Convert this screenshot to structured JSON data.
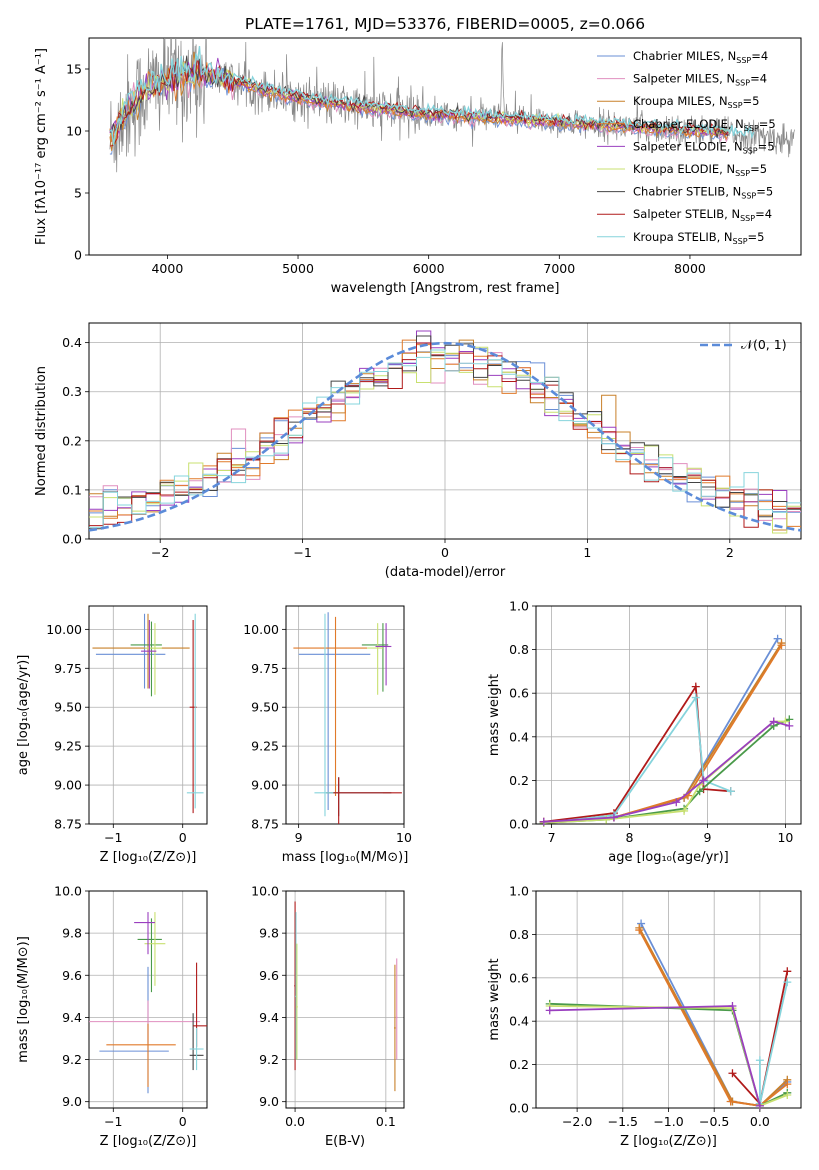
{
  "figure": {
    "title": "PLATE=1761, MJD=53376, FIBERID=0005, z=0.066"
  },
  "colors": {
    "chabrier_miles": "#6a8fd6",
    "salpeter_miles": "#e08fbf",
    "kroupa_miles": "#c8802a",
    "chabrier_elodie": "#e07a2a",
    "salpeter_elodie": "#9a3fbf",
    "kroupa_elodie": "#c8e070",
    "chabrier_stelib": "#444444",
    "salpeter_stelib": "#b01a1a",
    "kroupa_stelib": "#86d4dc",
    "green": "#4a9a4a",
    "data_grey": "#888888",
    "normal_curve": "#5b8bd9"
  },
  "chart_data": [
    {
      "id": "spectrum",
      "type": "line",
      "xlabel": "wavelength [Angstrom, rest frame]",
      "ylabel": "Flux [fλ10⁻¹⁷ erg cm⁻² s⁻¹ A⁻¹]",
      "xlim": [
        3400,
        8850
      ],
      "ylim": [
        0,
        17.5
      ],
      "xticks": [
        4000,
        5000,
        6000,
        7000,
        8000
      ],
      "yticks": [
        0,
        5,
        10,
        15
      ],
      "grid": false,
      "legend_position": "top-right",
      "legend": [
        {
          "label": "Chabrier MILES, N",
          "sub": "SSP",
          "tail": "=4",
          "color": "#6a8fd6"
        },
        {
          "label": "Salpeter MILES, N",
          "sub": "SSP",
          "tail": "=4",
          "color": "#e08fbf"
        },
        {
          "label": "Kroupa MILES, N",
          "sub": "SSP",
          "tail": "=5",
          "color": "#c8802a"
        },
        {
          "label": "Chabrier ELODIE, N",
          "sub": "SSP",
          "tail": "=5",
          "color": "#e07a2a"
        },
        {
          "label": "Salpeter ELODIE, N",
          "sub": "SSP",
          "tail": "=5",
          "color": "#9a3fbf"
        },
        {
          "label": "Kroupa ELODIE, N",
          "sub": "SSP",
          "tail": "=5",
          "color": "#c8e070"
        },
        {
          "label": "Chabrier STELIB, N",
          "sub": "SSP",
          "tail": "=5",
          "color": "#444444"
        },
        {
          "label": "Salpeter STELIB, N",
          "sub": "SSP",
          "tail": "=4",
          "color": "#b01a1a"
        },
        {
          "label": "Kroupa STELIB, N",
          "sub": "SSP",
          "tail": "=5",
          "color": "#86d4dc"
        }
      ],
      "continuum": {
        "x": [
          3560,
          3700,
          3900,
          4100,
          4300,
          4500,
          4700,
          4900,
          5200,
          5500,
          5800,
          6100,
          6400,
          6700,
          7000,
          7300,
          7600,
          7900,
          8200,
          8500,
          8800
        ],
        "y": [
          9.2,
          11.8,
          13.8,
          14.4,
          14.6,
          14.1,
          13.4,
          12.9,
          12.3,
          11.9,
          11.6,
          11.3,
          11.1,
          10.9,
          10.7,
          10.5,
          10.3,
          10.1,
          9.9,
          9.6,
          9.2
        ]
      }
    },
    {
      "id": "residuals",
      "type": "histogram",
      "xlabel": "(data-model)/error",
      "ylabel": "Normed distribution",
      "xlim": [
        -2.5,
        2.5
      ],
      "ylim": [
        0,
        0.44
      ],
      "xticks": [
        -2,
        -1,
        0,
        1,
        2
      ],
      "yticks": [
        0.0,
        0.1,
        0.2,
        0.3,
        0.4
      ],
      "grid": true,
      "legend_position": "top-right",
      "curve_label": "𝒩(0, 1)",
      "bin_width": 0.1
    },
    {
      "id": "age-vs-metallicity",
      "type": "errorbar",
      "xlabel": "Z [log₁₀(Z/Z⊙)]",
      "ylabel": "age  [log₁₀(age/yr)]",
      "xlim": [
        -1.35,
        0.35
      ],
      "ylim": [
        8.75,
        10.15
      ],
      "xticks": [
        -1,
        0
      ],
      "yticks": [
        8.75,
        9.0,
        9.25,
        9.5,
        9.75,
        10.0
      ],
      "grid": true,
      "points": [
        {
          "x": -0.55,
          "xerr": [
            0.7,
            0.3
          ],
          "y": 9.84,
          "yerr": [
            0.22,
            0.26
          ],
          "color": "#6a8fd6"
        },
        {
          "x": -0.5,
          "xerr": [
            0.8,
            0.6
          ],
          "y": 9.88,
          "yerr": [
            0.26,
            0.22
          ],
          "color": "#c8802a"
        },
        {
          "x": -0.45,
          "xerr": [
            0.3,
            0.15
          ],
          "y": 9.9,
          "yerr": [
            0.33,
            0.15
          ],
          "color": "#4a9a4a"
        },
        {
          "x": -0.4,
          "xerr": [
            0.15,
            0.1
          ],
          "y": 9.88,
          "yerr": [
            0.3,
            0.16
          ],
          "color": "#c8e070"
        },
        {
          "x": -0.48,
          "xerr": [
            0.12,
            0.1
          ],
          "y": 9.86,
          "yerr": [
            0.24,
            0.2
          ],
          "color": "#9a3fbf"
        },
        {
          "x": 0.15,
          "xerr": [
            0.05,
            0.05
          ],
          "y": 9.5,
          "yerr": [
            0.68,
            0.56
          ],
          "color": "#b01a1a"
        },
        {
          "x": 0.18,
          "xerr": [
            0.12,
            0.12
          ],
          "y": 8.95,
          "yerr": [
            0.1,
            1.15
          ],
          "color": "#86d4dc"
        }
      ]
    },
    {
      "id": "age-vs-mass",
      "type": "errorbar",
      "xlabel": "mass [log₁₀(M/M⊙)]",
      "ylabel": "",
      "xlim": [
        8.88,
        10.0
      ],
      "ylim": [
        8.75,
        10.15
      ],
      "xticks": [
        9,
        10
      ],
      "yticks": [
        8.75,
        9.0,
        9.25,
        9.5,
        9.75,
        10.0
      ],
      "grid": true,
      "points": [
        {
          "x": 9.28,
          "xerr": [
            0.28,
            0.4
          ],
          "y": 9.84,
          "yerr": [
            1.0,
            0.27
          ],
          "color": "#6a8fd6"
        },
        {
          "x": 9.35,
          "xerr": [
            0.4,
            0.3
          ],
          "y": 9.88,
          "yerr": [
            0.95,
            0.2
          ],
          "color": "#e07a2a"
        },
        {
          "x": 9.8,
          "xerr": [
            0.2,
            0.05
          ],
          "y": 9.9,
          "yerr": [
            0.3,
            0.14
          ],
          "color": "#4a9a4a"
        },
        {
          "x": 9.75,
          "xerr": [
            0.1,
            0.05
          ],
          "y": 9.88,
          "yerr": [
            0.3,
            0.16
          ],
          "color": "#c8e070"
        },
        {
          "x": 9.83,
          "xerr": [
            0.1,
            0.05
          ],
          "y": 9.89,
          "yerr": [
            0.25,
            0.15
          ],
          "color": "#9a3fbf"
        },
        {
          "x": 9.38,
          "xerr": [
            0.12,
            0.5
          ],
          "y": 8.95,
          "yerr": [
            0.15,
            0.1
          ],
          "color": "#444444"
        },
        {
          "x": 9.25,
          "xerr": [
            0.1,
            0.55
          ],
          "y": 8.95,
          "yerr": [
            0.15,
            1.15
          ],
          "color": "#86d4dc"
        },
        {
          "x": 9.38,
          "xerr": [
            0.05,
            0.6
          ],
          "y": 8.95,
          "yerr": [
            0.2,
            0.1
          ],
          "color": "#b01a1a"
        }
      ]
    },
    {
      "id": "massweight-vs-age",
      "type": "line",
      "xlabel": "age  [log₁₀(age/yr)]",
      "ylabel": "mass weight",
      "xlim": [
        6.8,
        10.2
      ],
      "ylim": [
        0,
        1.0
      ],
      "xticks": [
        7,
        8,
        9,
        10
      ],
      "yticks": [
        0.0,
        0.2,
        0.4,
        0.6,
        0.8,
        1.0
      ],
      "grid": true,
      "series": [
        {
          "color": "#6a8fd6",
          "x": [
            6.9,
            7.8,
            8.7,
            9.9
          ],
          "y": [
            0.01,
            0.03,
            0.12,
            0.85
          ]
        },
        {
          "color": "#c8802a",
          "x": [
            6.9,
            7.8,
            8.7,
            9.95
          ],
          "y": [
            0.01,
            0.03,
            0.12,
            0.83
          ]
        },
        {
          "color": "#e07a2a",
          "x": [
            6.9,
            7.8,
            8.75,
            9.95
          ],
          "y": [
            0.01,
            0.03,
            0.13,
            0.82
          ]
        },
        {
          "color": "#b01a1a",
          "x": [
            6.9,
            7.8,
            8.85,
            8.95,
            9.3
          ],
          "y": [
            0.01,
            0.05,
            0.63,
            0.16,
            0.15
          ]
        },
        {
          "color": "#86d4dc",
          "x": [
            6.9,
            7.8,
            8.85,
            8.95,
            9.3
          ],
          "y": [
            0.005,
            0.04,
            0.58,
            0.2,
            0.15
          ]
        },
        {
          "color": "#4a9a4a",
          "x": [
            6.9,
            7.7,
            8.7,
            8.9,
            9.85,
            10.05
          ],
          "y": [
            0.005,
            0.02,
            0.07,
            0.15,
            0.45,
            0.48
          ]
        },
        {
          "color": "#c8e070",
          "x": [
            6.9,
            7.7,
            8.7,
            8.9,
            9.85,
            10.0
          ],
          "y": [
            0.005,
            0.02,
            0.06,
            0.18,
            0.47,
            0.47
          ]
        },
        {
          "color": "#9a3fbf",
          "x": [
            6.9,
            7.8,
            8.6,
            8.95,
            9.85,
            10.05
          ],
          "y": [
            0.01,
            0.03,
            0.1,
            0.2,
            0.47,
            0.45
          ]
        }
      ]
    },
    {
      "id": "mass-vs-metallicity",
      "type": "errorbar",
      "xlabel": "Z [log₁₀(Z/Z⊙)]",
      "ylabel": "mass [log₁₀(M/M⊙)]",
      "xlim": [
        -1.35,
        0.35
      ],
      "ylim": [
        8.97,
        10.0
      ],
      "xticks": [
        -1,
        0
      ],
      "yticks": [
        9.0,
        9.2,
        9.4,
        9.6,
        9.8,
        10.0
      ],
      "grid": true,
      "points": [
        {
          "x": -0.5,
          "xerr": [
            0.7,
            0.3
          ],
          "y": 9.24,
          "yerr": [
            0.2,
            0.4
          ],
          "color": "#6a8fd6"
        },
        {
          "x": -0.5,
          "xerr": [
            0.85,
            0.75
          ],
          "y": 9.38,
          "yerr": [
            0.1,
            0.1
          ],
          "color": "#e08fbf"
        },
        {
          "x": -0.5,
          "xerr": [
            0.6,
            0.4
          ],
          "y": 9.27,
          "yerr": [
            0.2,
            0.1
          ],
          "color": "#e07a2a"
        },
        {
          "x": -0.45,
          "xerr": [
            0.2,
            0.15
          ],
          "y": 9.77,
          "yerr": [
            0.25,
            0.1
          ],
          "color": "#4a9a4a"
        },
        {
          "x": -0.4,
          "xerr": [
            0.15,
            0.15
          ],
          "y": 9.75,
          "yerr": [
            0.2,
            0.15
          ],
          "color": "#c8e070"
        },
        {
          "x": -0.5,
          "xerr": [
            0.2,
            0.1
          ],
          "y": 9.85,
          "yerr": [
            0.15,
            0.05
          ],
          "color": "#9a3fbf"
        },
        {
          "x": 0.15,
          "xerr": [
            0.05,
            0.15
          ],
          "y": 9.22,
          "yerr": [
            0.07,
            0.2
          ],
          "color": "#444444"
        },
        {
          "x": 0.2,
          "xerr": [
            0.05,
            0.15
          ],
          "y": 9.36,
          "yerr": [
            0.1,
            0.3
          ],
          "color": "#b01a1a"
        },
        {
          "x": 0.2,
          "xerr": [
            0.1,
            0.1
          ],
          "y": 9.25,
          "yerr": [
            0.1,
            0.1
          ],
          "color": "#86d4dc"
        }
      ]
    },
    {
      "id": "mass-vs-ebv",
      "type": "errorbar",
      "xlabel": "E(B-V)",
      "ylabel": "",
      "xlim": [
        -0.01,
        0.12
      ],
      "ylim": [
        8.97,
        10.0
      ],
      "xticks": [
        0.0,
        0.1
      ],
      "yticks": [
        9.0,
        9.2,
        9.4,
        9.6,
        9.8,
        10.0
      ],
      "grid": true,
      "points": [
        {
          "x": 0.0,
          "xerr": [
            0.001,
            0.001
          ],
          "y": 9.55,
          "yerr": [
            0.4,
            0.4
          ],
          "color": "#b01a1a"
        },
        {
          "x": 0.001,
          "xerr": [
            0.001,
            0.001
          ],
          "y": 9.5,
          "yerr": [
            0.3,
            0.4
          ],
          "color": "#86d4dc"
        },
        {
          "x": 0.002,
          "xerr": [
            0.001,
            0.001
          ],
          "y": 9.45,
          "yerr": [
            0.25,
            0.3
          ],
          "color": "#c8e070"
        },
        {
          "x": 0.11,
          "xerr": [
            0.001,
            0.001
          ],
          "y": 9.35,
          "yerr": [
            0.3,
            0.3
          ],
          "color": "#c8802a"
        },
        {
          "x": 0.112,
          "xerr": [
            0.001,
            0.001
          ],
          "y": 9.4,
          "yerr": [
            0.2,
            0.28
          ],
          "color": "#e08fbf"
        }
      ]
    },
    {
      "id": "massweight-vs-metallicity",
      "type": "line",
      "xlabel": "Z [log₁₀(Z/Z⊙)]",
      "ylabel": "mass weight",
      "xlim": [
        -2.45,
        0.45
      ],
      "ylim": [
        0,
        1.0
      ],
      "xticks": [
        -2.0,
        -1.5,
        -1.0,
        -0.5,
        0.0
      ],
      "yticks": [
        0.0,
        0.2,
        0.4,
        0.6,
        0.8,
        1.0
      ],
      "grid": true,
      "series": [
        {
          "color": "#6a8fd6",
          "x": [
            -1.3,
            -0.3,
            0.0,
            0.3
          ],
          "y": [
            0.85,
            0.03,
            0.01,
            0.12
          ]
        },
        {
          "color": "#c8802a",
          "x": [
            -1.32,
            -0.3,
            0.0,
            0.3
          ],
          "y": [
            0.83,
            0.03,
            0.01,
            0.13
          ]
        },
        {
          "color": "#e07a2a",
          "x": [
            -1.32,
            -0.32,
            0.0,
            0.3
          ],
          "y": [
            0.82,
            0.03,
            0.01,
            0.11
          ]
        },
        {
          "color": "#b01a1a",
          "x": [
            -0.3,
            0.0,
            0.3
          ],
          "y": [
            0.16,
            0.02,
            0.63
          ]
        },
        {
          "color": "#86d4dc",
          "x": [
            0.0,
            0.0,
            0.3
          ],
          "y": [
            0.22,
            0.02,
            0.58
          ]
        },
        {
          "color": "#4a9a4a",
          "x": [
            -2.3,
            -0.3,
            0.0,
            0.3
          ],
          "y": [
            0.48,
            0.45,
            0.01,
            0.07
          ]
        },
        {
          "color": "#c8e070",
          "x": [
            -2.3,
            -0.3,
            0.0,
            0.3
          ],
          "y": [
            0.47,
            0.46,
            0.01,
            0.06
          ]
        },
        {
          "color": "#9a3fbf",
          "x": [
            -2.3,
            -0.3,
            0.0
          ],
          "y": [
            0.45,
            0.47,
            0.01
          ]
        }
      ]
    }
  ]
}
